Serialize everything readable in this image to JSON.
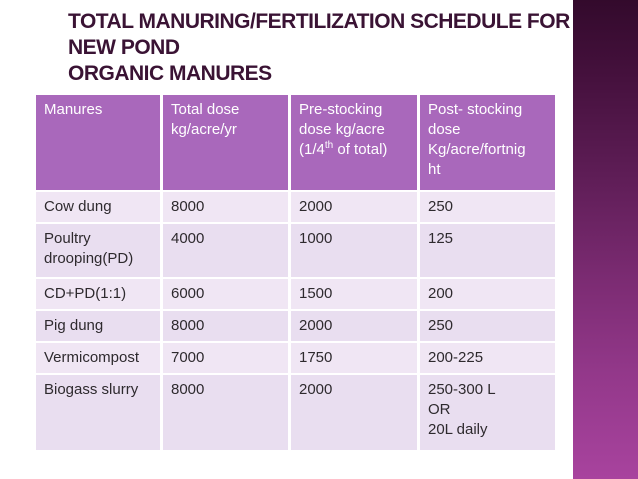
{
  "title": {
    "lines": [
      "TOTAL MANURING/FERTILIZATION SCHEDULE FOR",
      "NEW POND",
      "ORGANIC MANURES"
    ],
    "color": "#3a1334"
  },
  "decor": {
    "right_stripe": {
      "top_color": "#330a2c",
      "mid_color": "#7b2b72",
      "bottom_color": "#a8439e"
    }
  },
  "table": {
    "header_bg": "#a968bb",
    "header_text_color": "#ffffff",
    "row_tint_light": "#f0e6f4",
    "row_tint_dark": "#e9def0",
    "body_text_color": "#2e2a2e",
    "headers": {
      "manures": "Manures",
      "total_dose": "Total dose\nkg/acre/yr",
      "pre_stocking_pre": "Pre-stocking\ndose kg/acre\n(1/4",
      "pre_stocking_sup": "th",
      "pre_stocking_post": " of total)",
      "post_stocking": "Post- stocking\ndose\nKg/acre/fortnig\nht"
    },
    "rows": [
      {
        "cells": [
          "Cow dung",
          "8000",
          "2000",
          "250"
        ]
      },
      {
        "cells": [
          "Poultry\ndrooping(PD)",
          "4000",
          "1000",
          "125"
        ]
      },
      {
        "cells": [
          "CD+PD(1:1)",
          "6000",
          "1500",
          "200"
        ]
      },
      {
        "cells": [
          "Pig dung",
          "8000",
          "2000",
          "250"
        ]
      },
      {
        "cells": [
          "Vermicompost",
          "7000",
          "1750",
          "200-225"
        ]
      },
      {
        "cells": [
          "Biogass slurry",
          "8000",
          "2000",
          "250-300 L\nOR\n20L daily"
        ]
      }
    ]
  }
}
